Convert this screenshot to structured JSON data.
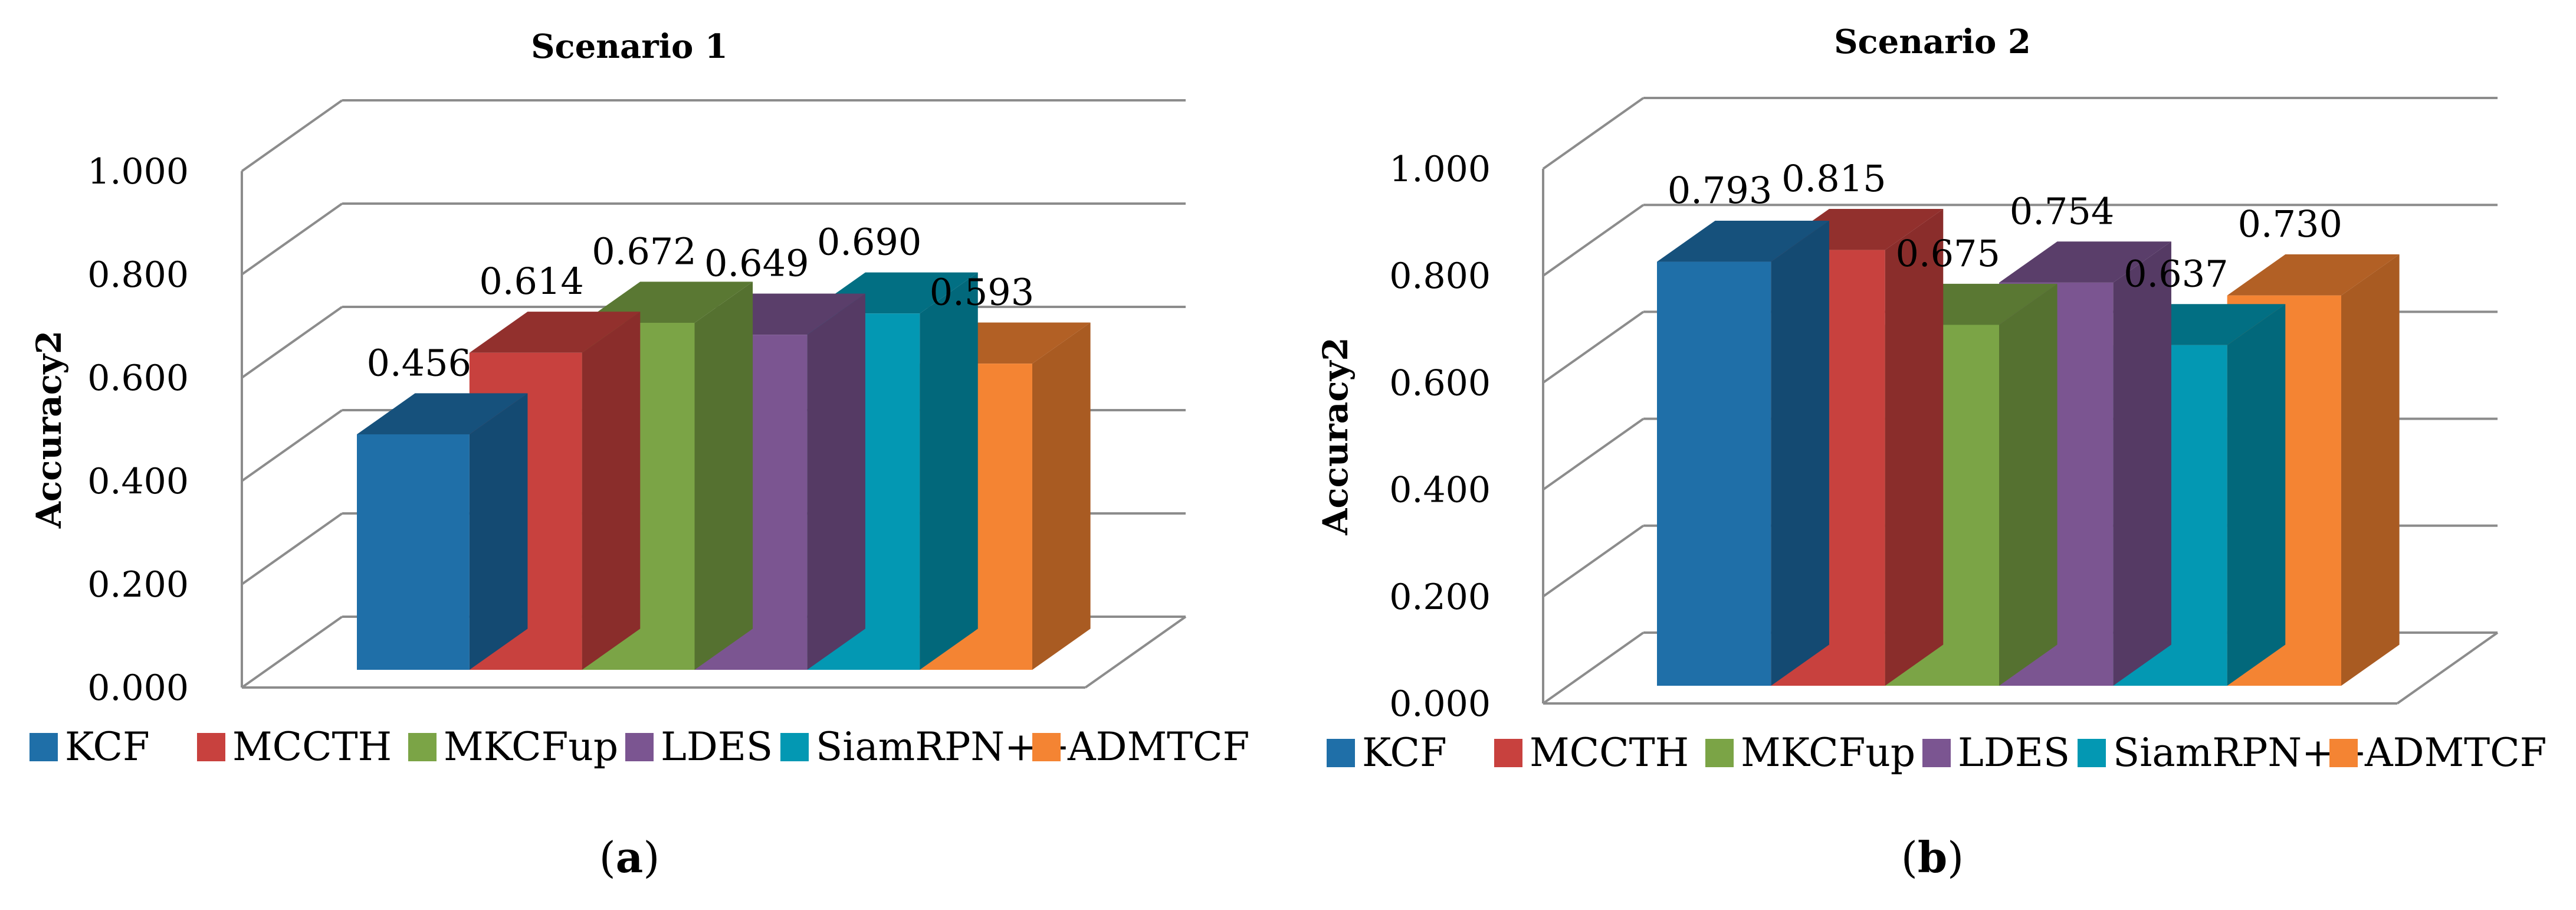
{
  "chart_data": [
    {
      "type": "bar",
      "panel": "a",
      "title": "Scenario 1",
      "xlabel": "",
      "ylabel": "Accuracy2",
      "ylim": [
        0,
        1
      ],
      "yticks": [
        "0.000",
        "0.200",
        "0.400",
        "0.600",
        "0.800",
        "1.000"
      ],
      "grid": true,
      "legend": "bottom",
      "series": [
        {
          "name": "KCF",
          "value": 0.456,
          "label": "0.456",
          "color": "#1F6FA8",
          "top": "#16517C",
          "side": "#144A72"
        },
        {
          "name": "MCCTH",
          "value": 0.614,
          "label": "0.614",
          "color": "#C8413E",
          "top": "#92302D",
          "side": "#8A2D2B"
        },
        {
          "name": "MKCFup",
          "value": 0.672,
          "label": "0.672",
          "color": "#7BA446",
          "top": "#5A7833",
          "side": "#557130"
        },
        {
          "name": "LDES",
          "value": 0.649,
          "label": "0.649",
          "color": "#7B5591",
          "top": "#5A3E6A",
          "side": "#553A64"
        },
        {
          "name": "SiamRPN++",
          "value": 0.69,
          "label": "0.690",
          "color": "#0398B3",
          "top": "#026F83",
          "side": "#02687B"
        },
        {
          "name": "ADMTCF",
          "value": 0.593,
          "label": "0.593",
          "color": "#F48433",
          "top": "#B26025",
          "side": "#A95B22"
        }
      ],
      "caption": {
        "open": "(",
        "letter": "a",
        "close": ")"
      }
    },
    {
      "type": "bar",
      "panel": "b",
      "title": "Scenario 2",
      "xlabel": "",
      "ylabel": "Accuracy2",
      "ylim": [
        0,
        1
      ],
      "yticks": [
        "0.000",
        "0.200",
        "0.400",
        "0.600",
        "0.800",
        "1.000"
      ],
      "grid": true,
      "legend": "bottom",
      "series": [
        {
          "name": "KCF",
          "value": 0.793,
          "label": "0.793",
          "color": "#1F6FA8",
          "top": "#16517C",
          "side": "#144A72"
        },
        {
          "name": "MCCTH",
          "value": 0.815,
          "label": "0.815",
          "color": "#C8413E",
          "top": "#92302D",
          "side": "#8A2D2B"
        },
        {
          "name": "MKCFup",
          "value": 0.675,
          "label": "0.675",
          "color": "#7BA446",
          "top": "#5A7833",
          "side": "#557130"
        },
        {
          "name": "LDES",
          "value": 0.754,
          "label": "0.754",
          "color": "#7B5591",
          "top": "#5A3E6A",
          "side": "#553A64"
        },
        {
          "name": "SiamRPN++",
          "value": 0.637,
          "label": "0.637",
          "color": "#0398B3",
          "top": "#026F83",
          "side": "#02687B"
        },
        {
          "name": "ADMTCF",
          "value": 0.73,
          "label": "0.730",
          "color": "#F48433",
          "top": "#B26025",
          "side": "#A95B22"
        }
      ],
      "caption": {
        "open": "(",
        "letter": "b",
        "close": ")"
      }
    }
  ]
}
